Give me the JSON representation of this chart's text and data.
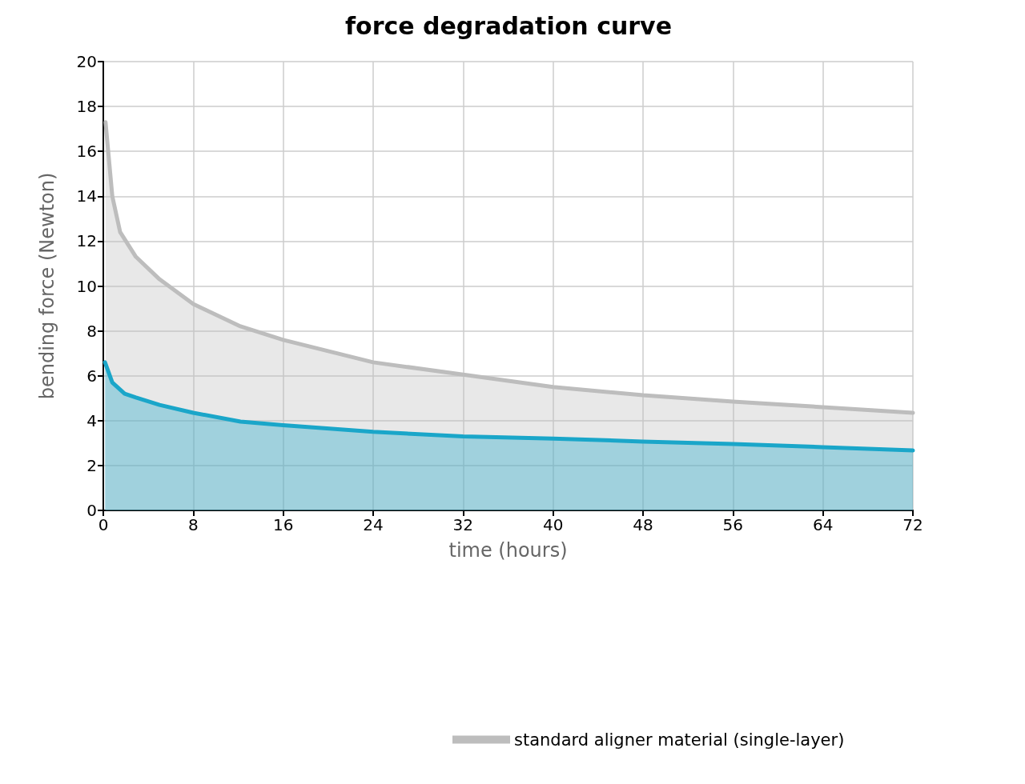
{
  "chart_data": {
    "type": "area",
    "title": "force degradation curve",
    "xlabel": "time (hours)",
    "ylabel": "bending force (Newton)",
    "xlim": [
      0,
      72
    ],
    "xticks": [
      0,
      8,
      16,
      24,
      32,
      40,
      48,
      56,
      64,
      72
    ],
    "ylim": [
      0,
      20
    ],
    "yticks": [
      0,
      2,
      4,
      6,
      8,
      10,
      12,
      14,
      16,
      18,
      20
    ],
    "grid": true,
    "legend": "bottom",
    "marker": "none",
    "series": [
      {
        "name": "standard aligner material (single-layer)",
        "color": "#bdbdbd",
        "x": [
          0.2,
          0.8,
          1.5,
          2.9,
          5,
          8,
          12.2,
          16,
          24,
          32,
          40,
          48,
          56,
          64,
          72
        ],
        "values": [
          17.3,
          14,
          12.4,
          11.3,
          10.3,
          9.2,
          8.2,
          7.6,
          6.6,
          6.05,
          5.5,
          5.13,
          4.85,
          4.6,
          4.35
        ]
      },
      {
        "color": "#1aa6c9",
        "x": [
          0.15,
          0.8,
          1.9,
          2.9,
          5,
          8,
          12.2,
          16,
          24,
          32,
          40,
          48,
          56,
          64,
          72
        ],
        "values": [
          6.6,
          5.7,
          5.2,
          5.03,
          4.7,
          4.35,
          3.96,
          3.8,
          3.5,
          3.3,
          3.2,
          3.07,
          2.96,
          2.82,
          2.67
        ]
      }
    ]
  }
}
